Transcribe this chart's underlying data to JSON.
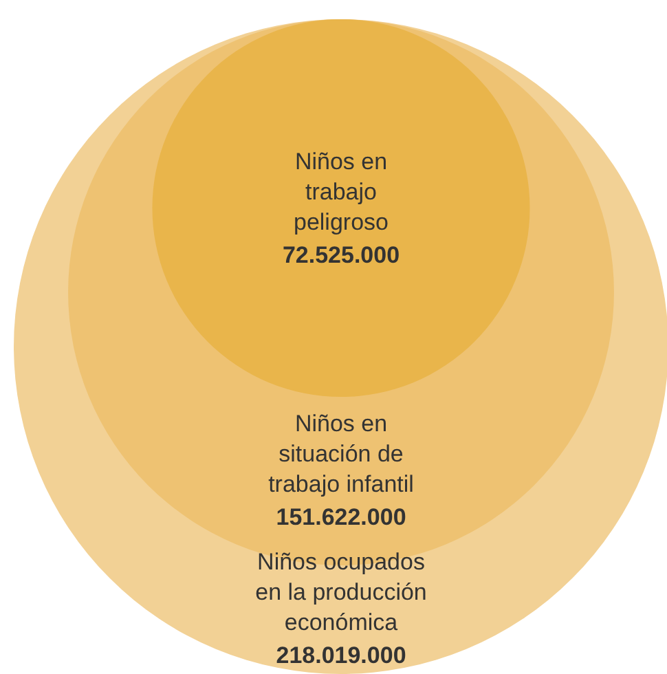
{
  "chart_data": {
    "type": "other",
    "categories": [
      "Niños en\ntrabajo\npeligroso",
      "Niños en\nsituación de\ntrabajo infantil",
      "Niños ocupados\nen la producción\neconómica"
    ],
    "values": [
      72525000,
      151622000,
      218019000
    ],
    "value_labels": [
      "72.525.000",
      "151.622.000",
      "218.019.000"
    ],
    "colors": [
      "#e9b54b",
      "#eec272",
      "#f2d195"
    ]
  }
}
